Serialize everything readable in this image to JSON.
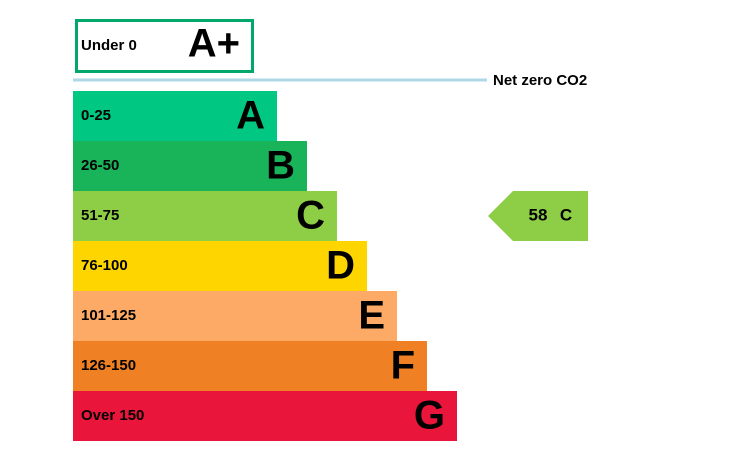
{
  "top_band": {
    "range": "Under 0",
    "letter": "A+",
    "color": "#00a86b"
  },
  "net_zero": {
    "label": "Net zero CO2",
    "color": "#add8e6"
  },
  "bands": [
    {
      "range": "0-25",
      "letter": "A",
      "color": "#00c781"
    },
    {
      "range": "26-50",
      "letter": "B",
      "color": "#19b459"
    },
    {
      "range": "51-75",
      "letter": "C",
      "color": "#8dce46"
    },
    {
      "range": "76-100",
      "letter": "D",
      "color": "#ffd500"
    },
    {
      "range": "101-125",
      "letter": "E",
      "color": "#fcaa65"
    },
    {
      "range": "126-150",
      "letter": "F",
      "color": "#ef8023"
    },
    {
      "range": "Over 150",
      "letter": "G",
      "color": "#e9153b"
    }
  ],
  "current": {
    "score": 58,
    "rating": "C",
    "color": "#8dce46"
  }
}
